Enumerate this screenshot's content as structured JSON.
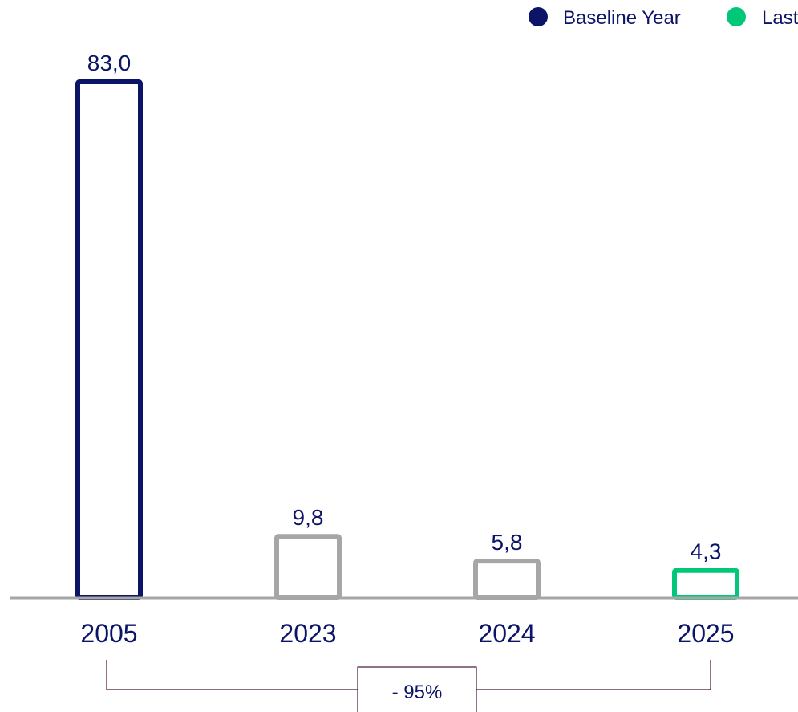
{
  "legend": [
    {
      "label": "Baseline Year",
      "color": "#0b1466"
    },
    {
      "label": "Last",
      "color": "#00c878"
    }
  ],
  "change_label": "- 95%",
  "colors": {
    "baseline": "#0b1466",
    "intermediate": "#a6a6a6",
    "last": "#00c878",
    "axis": "#a6a6a6",
    "text": "#0b1466",
    "bracket": "#4a1238"
  },
  "chart_data": {
    "type": "bar",
    "categories": [
      "2005",
      "2023",
      "2024",
      "2025"
    ],
    "values": [
      83.0,
      9.8,
      5.8,
      4.3
    ],
    "value_labels": [
      "83,0",
      "9,8",
      "5,8",
      "4,3"
    ],
    "bar_roles": [
      "baseline",
      "intermediate",
      "intermediate",
      "last"
    ],
    "bar_style": "outlined",
    "title": "",
    "xlabel": "",
    "ylabel": "",
    "ylim": [
      0,
      83
    ],
    "grid": false,
    "legend_position": "top-right",
    "annotations": [
      {
        "type": "bracket",
        "from": "2005",
        "to": "2025",
        "text": "- 95%"
      }
    ]
  }
}
